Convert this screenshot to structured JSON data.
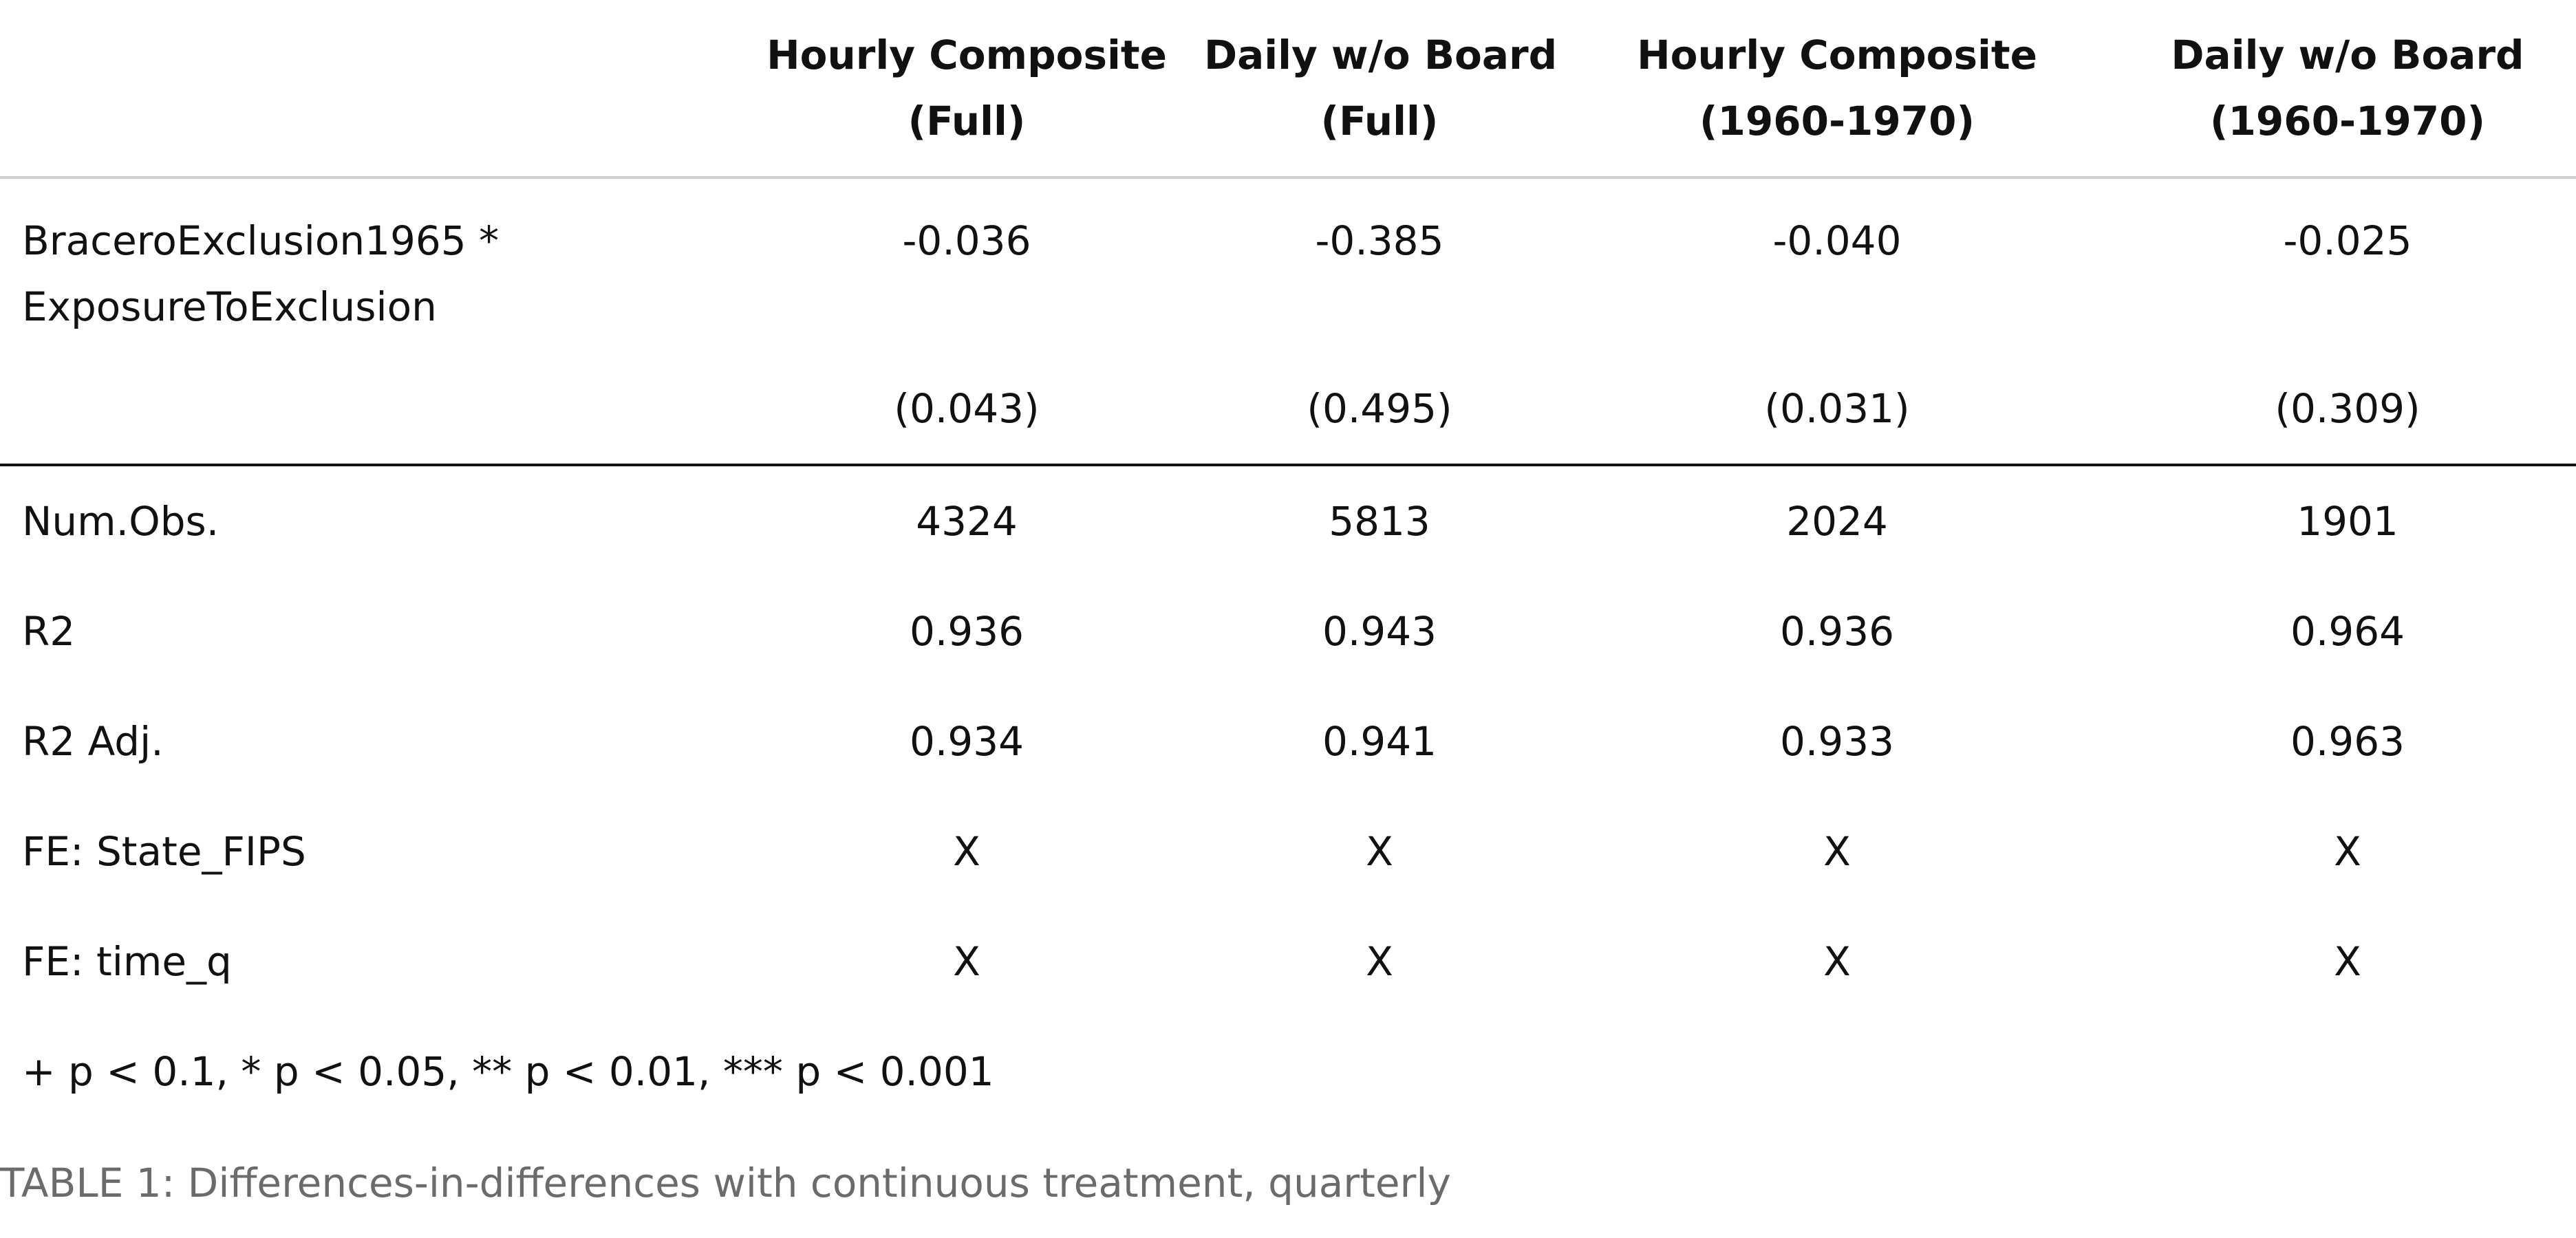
{
  "table": {
    "headers": [
      {
        "line1": "",
        "line2": ""
      },
      {
        "line1": "Hourly Composite",
        "line2": "(Full)"
      },
      {
        "line1": "Daily w/o Board",
        "line2": "(Full)"
      },
      {
        "line1": "Hourly Composite",
        "line2": "(1960-1970)"
      },
      {
        "line1": "Daily w/o Board",
        "line2": "(1960-1970)"
      }
    ],
    "coefficient": {
      "label_line1": "BraceroExclusion1965 *",
      "label_line2": "ExposureToExclusion",
      "estimates": [
        "-0.036",
        "-0.385",
        "-0.040",
        "-0.025"
      ],
      "std_errors": [
        "(0.043)",
        "(0.495)",
        "(0.031)",
        "(0.309)"
      ]
    },
    "stats": [
      {
        "label": "Num.Obs.",
        "values": [
          "4324",
          "5813",
          "2024",
          "1901"
        ]
      },
      {
        "label": "R2",
        "values": [
          "0.936",
          "0.943",
          "0.936",
          "0.964"
        ]
      },
      {
        "label": "R2 Adj.",
        "values": [
          "0.934",
          "0.941",
          "0.933",
          "0.963"
        ]
      },
      {
        "label": "FE: State_FIPS",
        "values": [
          "X",
          "X",
          "X",
          "X"
        ]
      },
      {
        "label": "FE: time_q",
        "values": [
          "X",
          "X",
          "X",
          "X"
        ]
      }
    ],
    "note": "+ p < 0.1, * p < 0.05, ** p < 0.01, *** p < 0.001"
  },
  "caption": "TABLE 1: Differences-in-differences with continuous treatment, quarterly"
}
